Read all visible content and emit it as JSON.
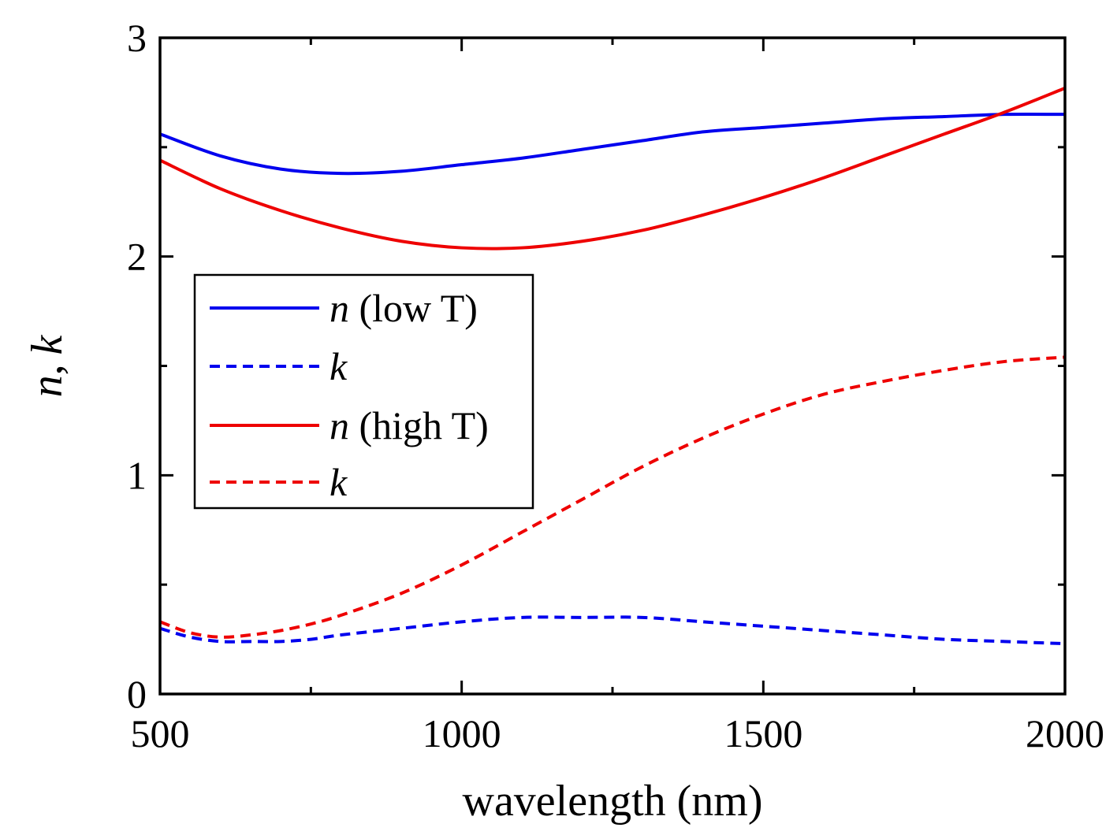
{
  "chart_data": {
    "type": "line",
    "title": "",
    "xlabel": "wavelength (nm)",
    "ylabel_parts": {
      "n": "n",
      "sep": ",",
      "k": "k"
    },
    "xlim": [
      500,
      2000
    ],
    "ylim": [
      0,
      3
    ],
    "x_ticks": [
      500,
      1000,
      1500,
      2000
    ],
    "x_minor_ticks": [
      750,
      1250,
      1750
    ],
    "y_ticks": [
      0,
      1,
      2,
      3
    ],
    "y_minor_ticks": [
      0.5,
      1.5,
      2.5
    ],
    "grid": false,
    "legend_position": "left-middle",
    "colors": {
      "low": "#0000ee",
      "high": "#ee0000"
    },
    "series": [
      {
        "id": "n-low",
        "name_var": "n",
        "name_rest": " (low T)",
        "color": "#0000ee",
        "dash": false,
        "x": [
          500,
          600,
          700,
          800,
          900,
          1000,
          1100,
          1200,
          1300,
          1400,
          1500,
          1600,
          1700,
          1800,
          1900,
          2000
        ],
        "y": [
          2.56,
          2.46,
          2.4,
          2.38,
          2.39,
          2.42,
          2.45,
          2.49,
          2.53,
          2.57,
          2.59,
          2.61,
          2.63,
          2.64,
          2.65,
          2.65
        ]
      },
      {
        "id": "k-low",
        "name_var": "k",
        "name_rest": "",
        "color": "#0000ee",
        "dash": true,
        "x": [
          500,
          550,
          600,
          650,
          700,
          750,
          800,
          900,
          1000,
          1100,
          1200,
          1300,
          1400,
          1500,
          1600,
          1700,
          1800,
          1900,
          2000
        ],
        "y": [
          0.3,
          0.26,
          0.24,
          0.24,
          0.24,
          0.25,
          0.27,
          0.3,
          0.33,
          0.35,
          0.35,
          0.35,
          0.33,
          0.31,
          0.29,
          0.27,
          0.25,
          0.24,
          0.23
        ]
      },
      {
        "id": "n-high",
        "name_var": "n",
        "name_rest": " (high T)",
        "color": "#ee0000",
        "dash": false,
        "x": [
          500,
          600,
          700,
          800,
          900,
          1000,
          1100,
          1200,
          1300,
          1400,
          1500,
          1600,
          1700,
          1800,
          1900,
          2000
        ],
        "y": [
          2.44,
          2.31,
          2.21,
          2.13,
          2.07,
          2.04,
          2.04,
          2.07,
          2.12,
          2.19,
          2.27,
          2.36,
          2.46,
          2.56,
          2.66,
          2.77
        ]
      },
      {
        "id": "k-high",
        "name_var": "k",
        "name_rest": "",
        "color": "#ee0000",
        "dash": true,
        "x": [
          500,
          550,
          600,
          650,
          700,
          750,
          800,
          900,
          1000,
          1100,
          1200,
          1300,
          1400,
          1500,
          1600,
          1700,
          1800,
          1900,
          2000
        ],
        "y": [
          0.33,
          0.28,
          0.26,
          0.27,
          0.29,
          0.32,
          0.36,
          0.46,
          0.59,
          0.74,
          0.89,
          1.04,
          1.17,
          1.28,
          1.37,
          1.43,
          1.48,
          1.52,
          1.54
        ]
      }
    ]
  }
}
